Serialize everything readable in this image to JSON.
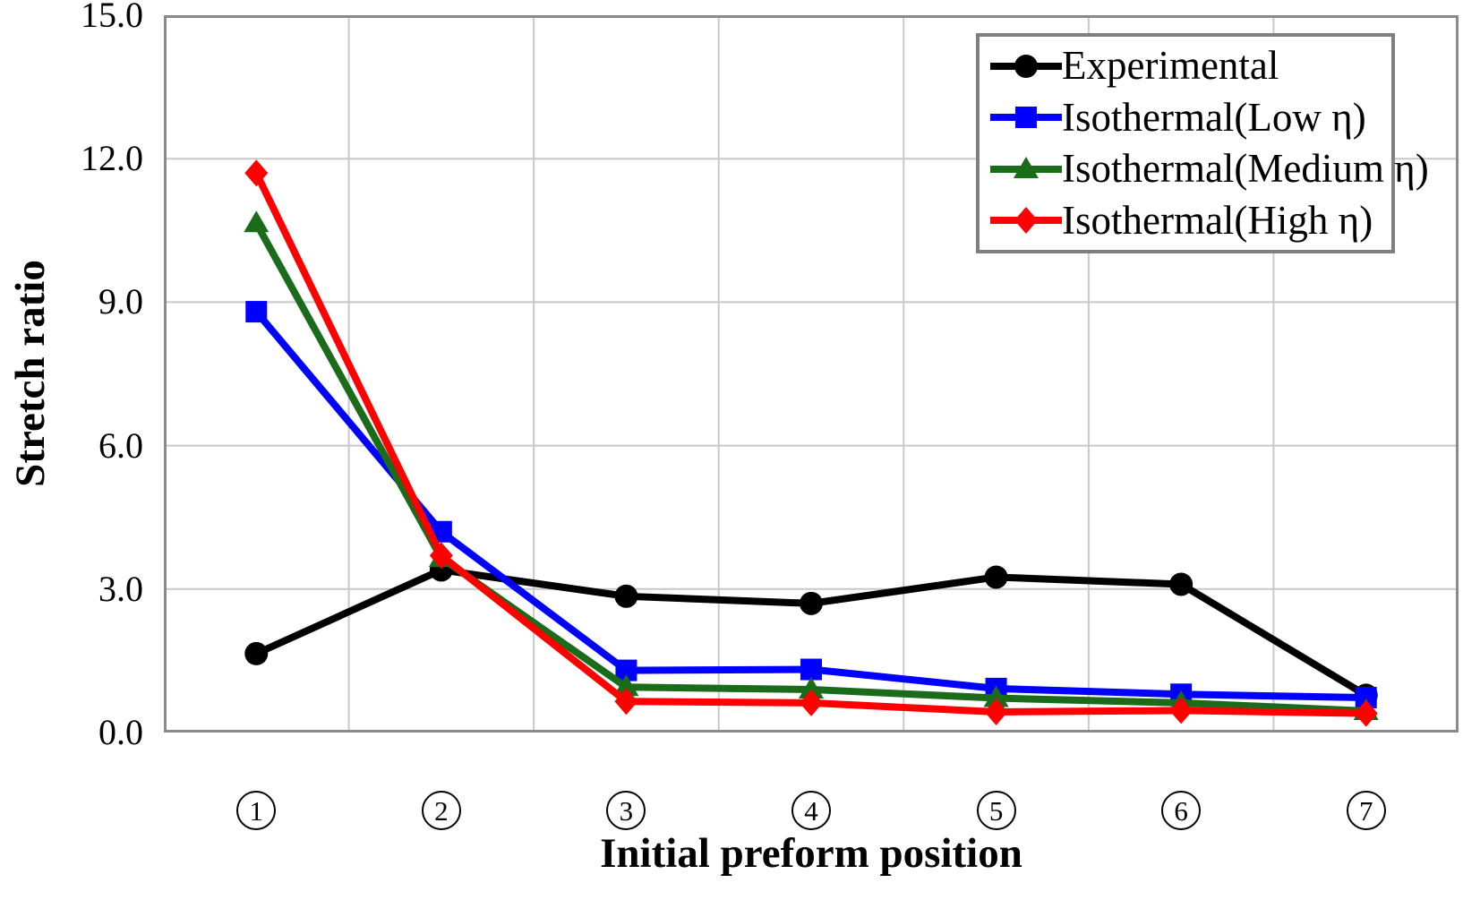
{
  "chart_data": {
    "type": "line",
    "title": "",
    "xlabel": "Initial preform position",
    "ylabel": "Stretch ratio",
    "categories": [
      "1",
      "2",
      "3",
      "4",
      "5",
      "6",
      "7"
    ],
    "category_style": "circled-number",
    "ylim": [
      0,
      15
    ],
    "yticks": [
      0,
      3,
      6,
      9,
      12,
      15
    ],
    "ytick_labels": [
      "0.0",
      "3.0",
      "6.0",
      "9.0",
      "12.0",
      "15.0"
    ],
    "grid": true,
    "legend_position": "top-right",
    "series": [
      {
        "name": "Experimental",
        "color": "#000000",
        "marker": "circle",
        "values": [
          1.65,
          3.4,
          2.85,
          2.7,
          3.25,
          3.1,
          0.78
        ]
      },
      {
        "name": "Isothermal(Low η)",
        "color": "#0000ff",
        "marker": "square",
        "values": [
          8.8,
          4.2,
          1.3,
          1.32,
          0.92,
          0.8,
          0.73
        ]
      },
      {
        "name": "Isothermal(Medium η)",
        "color": "#1a6b1a",
        "marker": "triangle",
        "values": [
          10.65,
          3.65,
          0.95,
          0.9,
          0.72,
          0.62,
          0.45
        ]
      },
      {
        "name": "Isothermal(High η)",
        "color": "#ff0000",
        "marker": "diamond",
        "values": [
          11.7,
          3.7,
          0.65,
          0.62,
          0.43,
          0.46,
          0.4
        ]
      }
    ],
    "style_colors": {
      "gridline": "#c8c8c8",
      "plot_border": "#8a8a8a",
      "legend_border": "#7f7f7f",
      "text": "#000000"
    }
  }
}
